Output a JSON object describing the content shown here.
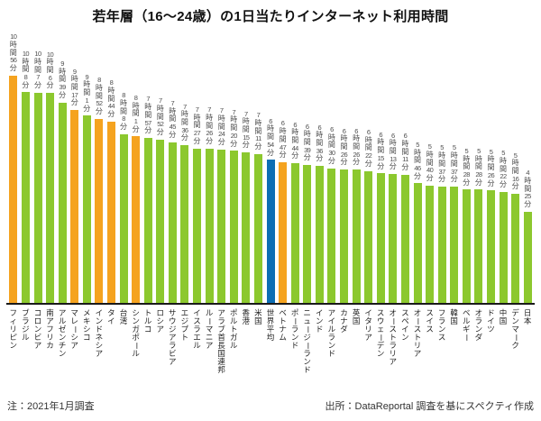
{
  "title": "若年層（16～24歳）の1日当たりインターネット利用時間",
  "footer": {
    "note": "注：2021年1月調査",
    "source": "出所：DataReportal 調査を基にスペクティ作成"
  },
  "colors": {
    "other": "#8CC82E",
    "asean": "#F5A31F",
    "world": "#0C6EB4",
    "axis": "#1A1A1A"
  },
  "chart_data": {
    "type": "bar",
    "title": "若年層（16～24歳）の1日当たりインターネット利用時間",
    "value_format": "H時間M分",
    "sorted": "descending",
    "grid": false,
    "legend": "none",
    "value_labels_position": "above-bars-vertical",
    "category_labels_position": "below-axis-vertical",
    "entries": [
      {
        "country": "フィリピン",
        "time": "10時間56分",
        "hours": 10,
        "minutes": 56,
        "total_minutes": 656,
        "group": "asean"
      },
      {
        "country": "ブラジル",
        "time": "10時間8分",
        "hours": 10,
        "minutes": 8,
        "total_minutes": 608,
        "group": "other"
      },
      {
        "country": "コロンビア",
        "time": "10時間7分",
        "hours": 10,
        "minutes": 7,
        "total_minutes": 607,
        "group": "other"
      },
      {
        "country": "南アフリカ",
        "time": "10時間6分",
        "hours": 10,
        "minutes": 6,
        "total_minutes": 606,
        "group": "other"
      },
      {
        "country": "アルゼンチン",
        "time": "9時間39分",
        "hours": 9,
        "minutes": 39,
        "total_minutes": 579,
        "group": "other"
      },
      {
        "country": "マレーシア",
        "time": "9時間17分",
        "hours": 9,
        "minutes": 17,
        "total_minutes": 557,
        "group": "asean"
      },
      {
        "country": "メキシコ",
        "time": "9時間1分",
        "hours": 9,
        "minutes": 1,
        "total_minutes": 541,
        "group": "other"
      },
      {
        "country": "インドネシア",
        "time": "8時間52分",
        "hours": 8,
        "minutes": 52,
        "total_minutes": 532,
        "group": "asean"
      },
      {
        "country": "タイ",
        "time": "8時間44分",
        "hours": 8,
        "minutes": 44,
        "total_minutes": 524,
        "group": "asean"
      },
      {
        "country": "台湾",
        "time": "8時間8分",
        "hours": 8,
        "minutes": 8,
        "total_minutes": 488,
        "group": "other"
      },
      {
        "country": "シンガポール",
        "time": "8時間1分",
        "hours": 8,
        "minutes": 1,
        "total_minutes": 481,
        "group": "asean"
      },
      {
        "country": "トルコ",
        "time": "7時間57分",
        "hours": 7,
        "minutes": 57,
        "total_minutes": 477,
        "group": "other"
      },
      {
        "country": "ロシア",
        "time": "7時間52分",
        "hours": 7,
        "minutes": 52,
        "total_minutes": 472,
        "group": "other"
      },
      {
        "country": "サウジアラビア",
        "time": "7時間45分",
        "hours": 7,
        "minutes": 45,
        "total_minutes": 465,
        "group": "other"
      },
      {
        "country": "エジプト",
        "time": "7時間36分",
        "hours": 7,
        "minutes": 36,
        "total_minutes": 456,
        "group": "other"
      },
      {
        "country": "イスラエル",
        "time": "7時間27分",
        "hours": 7,
        "minutes": 27,
        "total_minutes": 447,
        "group": "other"
      },
      {
        "country": "ルーマニア",
        "time": "7時間26分",
        "hours": 7,
        "minutes": 26,
        "total_minutes": 446,
        "group": "other"
      },
      {
        "country": "アラブ首長国連邦",
        "time": "7時間24分",
        "hours": 7,
        "minutes": 24,
        "total_minutes": 444,
        "group": "other"
      },
      {
        "country": "ポルトガル",
        "time": "7時間20分",
        "hours": 7,
        "minutes": 20,
        "total_minutes": 440,
        "group": "other"
      },
      {
        "country": "香港",
        "time": "7時間15分",
        "hours": 7,
        "minutes": 15,
        "total_minutes": 435,
        "group": "other"
      },
      {
        "country": "米国",
        "time": "7時間11分",
        "hours": 7,
        "minutes": 11,
        "total_minutes": 431,
        "group": "other"
      },
      {
        "country": "世界平均",
        "time": "6時間54分",
        "hours": 6,
        "minutes": 54,
        "total_minutes": 414,
        "group": "world"
      },
      {
        "country": "ベトナム",
        "time": "6時間47分",
        "hours": 6,
        "minutes": 47,
        "total_minutes": 407,
        "group": "asean"
      },
      {
        "country": "ポーランド",
        "time": "6時間44分",
        "hours": 6,
        "minutes": 44,
        "total_minutes": 404,
        "group": "other"
      },
      {
        "country": "ニュージーランド",
        "time": "6時間39分",
        "hours": 6,
        "minutes": 39,
        "total_minutes": 399,
        "group": "other"
      },
      {
        "country": "インド",
        "time": "6時間36分",
        "hours": 6,
        "minutes": 36,
        "total_minutes": 396,
        "group": "other"
      },
      {
        "country": "アイルランド",
        "time": "6時間30分",
        "hours": 6,
        "minutes": 30,
        "total_minutes": 390,
        "group": "other"
      },
      {
        "country": "カナダ",
        "time": "6時間26分",
        "hours": 6,
        "minutes": 26,
        "total_minutes": 386,
        "group": "other"
      },
      {
        "country": "英国",
        "time": "6時間26分",
        "hours": 6,
        "minutes": 26,
        "total_minutes": 386,
        "group": "other"
      },
      {
        "country": "イタリア",
        "time": "6時間22分",
        "hours": 6,
        "minutes": 22,
        "total_minutes": 382,
        "group": "other"
      },
      {
        "country": "スウェーデン",
        "time": "6時間15分",
        "hours": 6,
        "minutes": 15,
        "total_minutes": 375,
        "group": "other"
      },
      {
        "country": "オーストラリア",
        "time": "6時間13分",
        "hours": 6,
        "minutes": 13,
        "total_minutes": 373,
        "group": "other"
      },
      {
        "country": "スペイン",
        "time": "6時間11分",
        "hours": 6,
        "minutes": 11,
        "total_minutes": 371,
        "group": "other"
      },
      {
        "country": "オーストリア",
        "time": "5時間46分",
        "hours": 5,
        "minutes": 46,
        "total_minutes": 346,
        "group": "other"
      },
      {
        "country": "スイス",
        "time": "5時間40分",
        "hours": 5,
        "minutes": 40,
        "total_minutes": 340,
        "group": "other"
      },
      {
        "country": "フランス",
        "time": "5時間37分",
        "hours": 5,
        "minutes": 37,
        "total_minutes": 337,
        "group": "other"
      },
      {
        "country": "韓国",
        "time": "5時間37分",
        "hours": 5,
        "minutes": 37,
        "total_minutes": 337,
        "group": "other"
      },
      {
        "country": "ベルギー",
        "time": "5時間28分",
        "hours": 5,
        "minutes": 28,
        "total_minutes": 328,
        "group": "other"
      },
      {
        "country": "オランダ",
        "time": "5時間28分",
        "hours": 5,
        "minutes": 28,
        "total_minutes": 328,
        "group": "other"
      },
      {
        "country": "ドイツ",
        "time": "5時間26分",
        "hours": 5,
        "minutes": 26,
        "total_minutes": 326,
        "group": "other"
      },
      {
        "country": "中国",
        "time": "5時間22分",
        "hours": 5,
        "minutes": 22,
        "total_minutes": 322,
        "group": "other"
      },
      {
        "country": "デンマーク",
        "time": "5時間16分",
        "hours": 5,
        "minutes": 16,
        "total_minutes": 316,
        "group": "other"
      },
      {
        "country": "日本",
        "time": "4時間25分",
        "hours": 4,
        "minutes": 25,
        "total_minutes": 265,
        "group": "other"
      }
    ]
  }
}
